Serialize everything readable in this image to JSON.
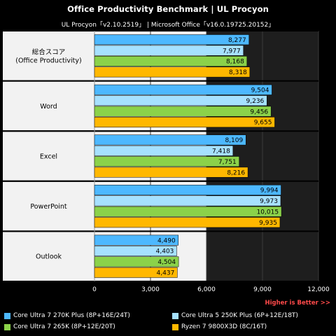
{
  "title": "Office Productivity Benchmark | UL Procyon",
  "subtitle": "UL Procyon「v2.10.2519」 | Microsoft Office「v16.0.19725.20152」",
  "note": "Higher is Better >>",
  "colors": {
    "background": "#000000",
    "plot_bg": "#1e1e1e",
    "group_bg": "#f2f2f2"
  },
  "chart_data": {
    "type": "bar",
    "orientation": "horizontal",
    "categories": [
      "総合スコア\n(Office Productivity)",
      "Word",
      "Excel",
      "PowerPoint",
      "Outlook"
    ],
    "series": [
      {
        "name": "Core Ultra 7 270K Plus (8P+16E/24T)",
        "color": "#4db8ff",
        "values": [
          8277,
          9504,
          8109,
          9994,
          4490
        ]
      },
      {
        "name": "Core Ultra 5 250K Plus (6P+12E/18T)",
        "color": "#a6e1ff",
        "values": [
          7977,
          9236,
          7418,
          9973,
          4403
        ]
      },
      {
        "name": "Core Ultra 7 265K (8P+12E/20T)",
        "color": "#8bd24a",
        "values": [
          8168,
          9456,
          7751,
          10015,
          4504
        ]
      },
      {
        "name": "Ryzen 7 9800X3D (8C/16T)",
        "color": "#ffb800",
        "values": [
          8318,
          9655,
          8216,
          9935,
          4437
        ]
      }
    ],
    "xlim": [
      0,
      12000
    ],
    "xticks": [
      0,
      3000,
      6000,
      9000,
      12000
    ],
    "xtick_labels": [
      "0",
      "3,000",
      "6,000",
      "9,000",
      "12,000"
    ],
    "legend_position": "bottom",
    "grid": true
  }
}
